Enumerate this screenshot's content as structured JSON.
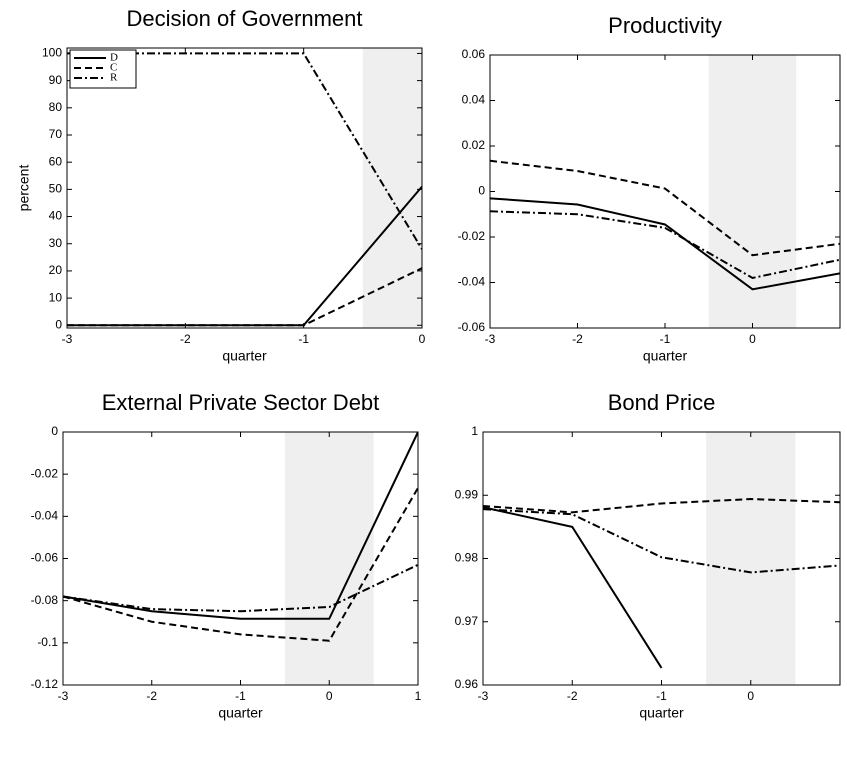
{
  "chart_data": [
    {
      "type": "line",
      "title": "Decision of Government",
      "xlabel": "quarter",
      "ylabel": "percent",
      "x": [
        -3,
        -2,
        -1,
        0
      ],
      "xlim": [
        -3,
        0
      ],
      "xticks": [
        -3,
        -2,
        -1,
        0
      ],
      "ylim": [
        -1,
        102
      ],
      "yticks": [
        0,
        10,
        20,
        30,
        40,
        50,
        60,
        70,
        80,
        90,
        100
      ],
      "shade": [
        -0.5,
        0.5
      ],
      "shade_color": "#efefef",
      "legend": "upper left",
      "series": [
        {
          "name": "D",
          "color": "#000000",
          "style": "solid",
          "values": [
            0,
            0,
            0,
            51
          ]
        },
        {
          "name": "C",
          "color": "#000000",
          "style": "dashed",
          "values": [
            0,
            0,
            0,
            21
          ]
        },
        {
          "name": "R",
          "color": "#000000",
          "style": "dashdot",
          "values": [
            100,
            100,
            100,
            28
          ]
        }
      ]
    },
    {
      "type": "line",
      "title": "Productivity",
      "xlabel": "quarter",
      "x": [
        -3,
        -2,
        -1,
        0,
        1
      ],
      "xlim": [
        -3,
        1
      ],
      "xticks": [
        -3,
        -2,
        -1,
        0
      ],
      "ylim": [
        -0.06,
        0.06
      ],
      "yticks": [
        -0.06,
        -0.04,
        -0.02,
        0,
        0.02,
        0.04,
        0.06
      ],
      "shade": [
        -0.5,
        0.5
      ],
      "shade_color": "#efefef",
      "series": [
        {
          "color": "#000000",
          "style": "solid",
          "values": [
            -0.003,
            -0.0057,
            -0.0145,
            -0.043,
            -0.036
          ]
        },
        {
          "color": "#000000",
          "style": "dashed",
          "values": [
            0.0135,
            0.009,
            0.0013,
            -0.028,
            -0.023
          ]
        },
        {
          "color": "#000000",
          "style": "dashdot",
          "values": [
            -0.0087,
            -0.01,
            -0.016,
            -0.038,
            -0.03
          ]
        }
      ]
    },
    {
      "type": "line",
      "title": "External Private Sector Debt",
      "xlabel": "quarter",
      "x": [
        -3,
        -2,
        -1,
        0,
        1
      ],
      "xlim": [
        -3,
        1
      ],
      "xticks": [
        -3,
        -2,
        -1,
        0,
        1
      ],
      "ylim": [
        -0.12,
        0
      ],
      "yticks": [
        -0.12,
        -0.1,
        -0.08,
        -0.06,
        -0.04,
        -0.02,
        0
      ],
      "shade": [
        -0.5,
        0.5
      ],
      "shade_color": "#efefef",
      "series": [
        {
          "color": "#000000",
          "style": "solid",
          "values": [
            -0.078,
            -0.085,
            -0.0886,
            -0.0886,
            0
          ]
        },
        {
          "color": "#000000",
          "style": "dashed",
          "values": [
            -0.078,
            -0.09,
            -0.096,
            -0.099,
            -0.0265
          ]
        },
        {
          "color": "#000000",
          "style": "dashdot",
          "values": [
            -0.078,
            -0.084,
            -0.085,
            -0.083,
            -0.063
          ]
        }
      ]
    },
    {
      "type": "line",
      "title": "Bond Price",
      "xlabel": "quarter",
      "x": [
        -3,
        -2,
        -1,
        0,
        1
      ],
      "xlim": [
        -3,
        1
      ],
      "xticks": [
        -3,
        -2,
        -1,
        0
      ],
      "ylim": [
        0.96,
        1
      ],
      "yticks": [
        0.96,
        0.97,
        0.98,
        0.99,
        1
      ],
      "shade": [
        -0.5,
        0.5
      ],
      "shade_color": "#efefef",
      "series": [
        {
          "color": "#000000",
          "style": "solid",
          "values": [
            0.9881,
            0.985,
            0.9627,
            null,
            null
          ]
        },
        {
          "color": "#000000",
          "style": "dashed",
          "values": [
            0.9883,
            0.9873,
            0.9887,
            0.9894,
            0.9889
          ]
        },
        {
          "color": "#000000",
          "style": "dashdot",
          "values": [
            0.9878,
            0.987,
            0.9802,
            0.9778,
            0.9789
          ]
        }
      ]
    }
  ]
}
